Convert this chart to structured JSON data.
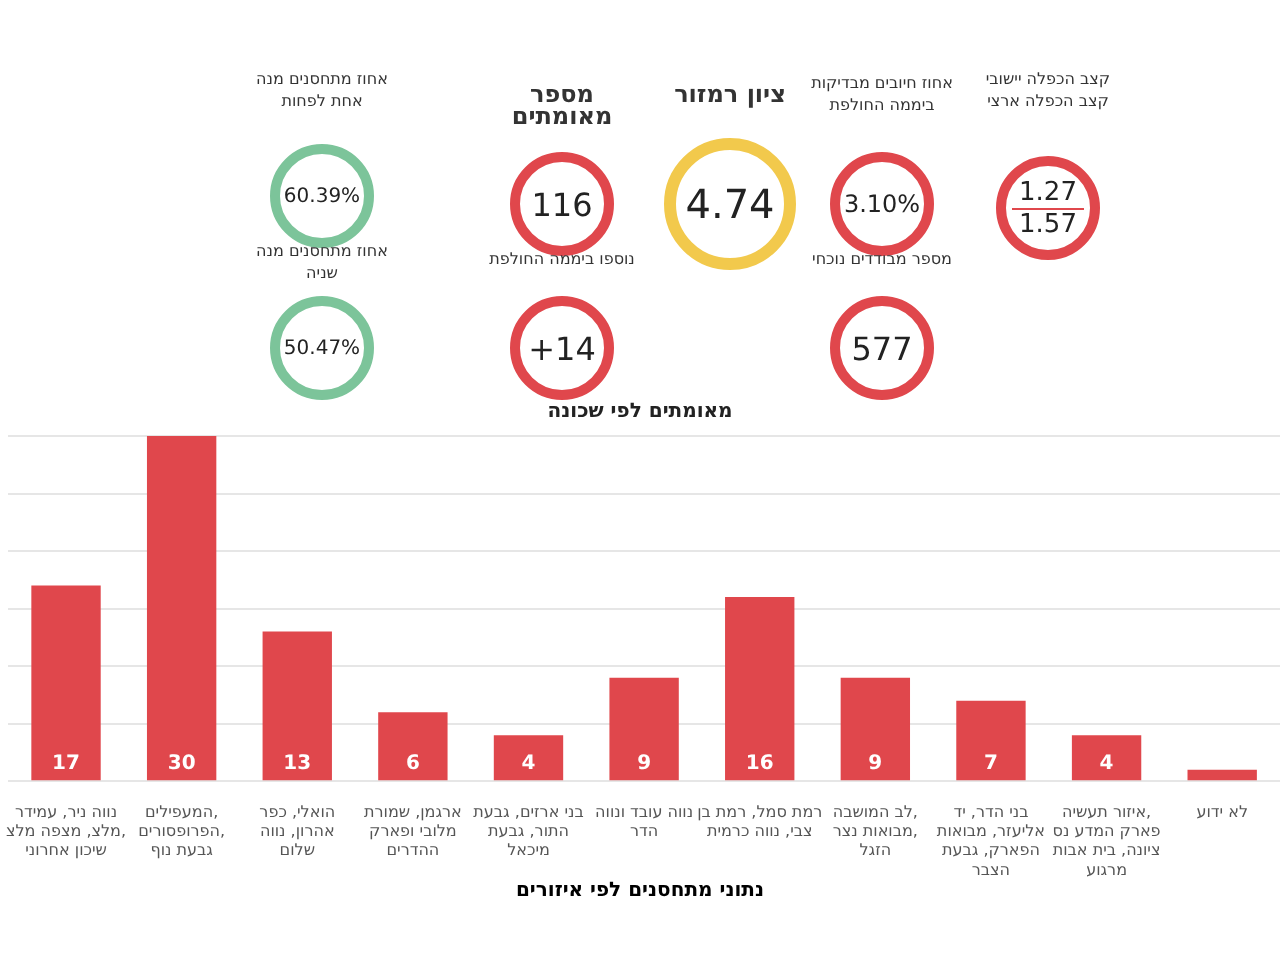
{
  "chart_data": [
    {
      "type": "other",
      "annotations": [
        "קצב הכפלה יישובי",
        "קצב הכפלה ארצי",
        "1.27",
        "1.57",
        "אחוז חיובים מבדיקות ביממה החולפת",
        "3.10%",
        "מספר מבודדים נוכחי",
        "577",
        "ציון רמזור",
        "4.74",
        "מספר מאומתים",
        "116",
        "נוספו ביממה החולפת",
        "+14",
        "אחוז מתחסנים מנה אחת לפחות",
        "60.39%",
        "אחוז מתחסנים מנה שניה",
        "50.47%",
        "נתוני מתחסנים לפי איזורים"
      ],
      "colors": [
        "#e0474c",
        "#e0474c",
        "#e0474c",
        "#f2c94c",
        "#e0474c",
        "#e0474c",
        "#7cc49a",
        "#7cc49a"
      ]
    },
    {
      "type": "bar",
      "title": "מאומתים לפי שכונה",
      "categories": [
        "נווה ניר, עמידר מלצ, מצפה מלצ, שיכון אחרוני",
        "המעפילים, הפרופסורים, גבעת נוף",
        "הואלי, כפר אהרון, נווה שלום",
        "ארגמן, שמורת מלובי ופארק ההדרים",
        "בני ארזים, גבעת התור, גבעת מיכאל",
        "נווה עובד ונווה הדר",
        "רמת סמל, רמת בן צבי, נווה כרמית",
        "לב המושבה, מבואות נצר, הזגל",
        "בני הדר, יד אליעזר, מבואות הפארק, גבעת הצבר",
        "איזור תעשיה, פארק המדע נס ציונה, בית אבות מרגוע",
        "לא ידוע"
      ],
      "values": [
        17,
        30,
        13,
        6,
        4,
        9,
        16,
        9,
        7,
        4,
        1
      ],
      "value_labels": [
        "17",
        "30",
        "13",
        "6",
        "4",
        "9",
        "16",
        "9",
        "7",
        "4",
        null
      ],
      "color": "#e0474c",
      "ylim": [
        0,
        30
      ],
      "yticks": [
        {
          "value": 0,
          "label": null
        },
        {
          "value": 5,
          "label": null
        },
        {
          "value": 10,
          "label": null
        },
        {
          "value": 15,
          "label": null
        },
        {
          "value": 20,
          "label": null
        },
        {
          "value": 25,
          "label": null
        },
        {
          "value": 30,
          "label": null
        }
      ],
      "tick_labels": "x",
      "grid": "y"
    }
  ]
}
